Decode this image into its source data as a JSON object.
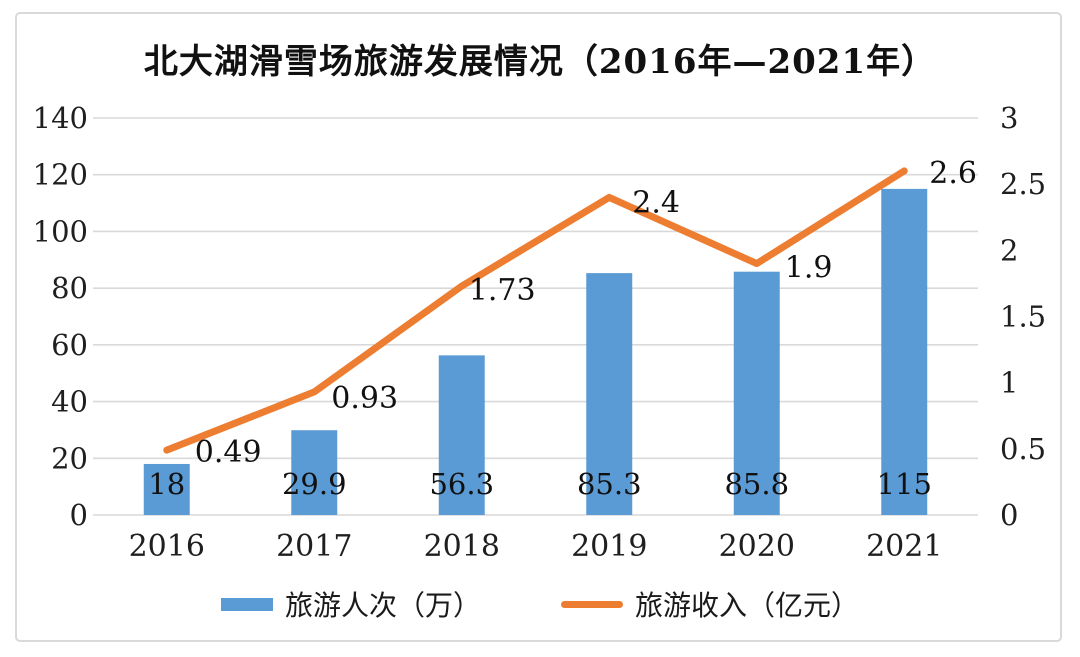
{
  "chart_data": {
    "type": "bar+line",
    "title": "北大湖滑雪场旅游发展情况（2016年—2021年）",
    "categories": [
      "2016",
      "2017",
      "2018",
      "2019",
      "2020",
      "2021"
    ],
    "series": [
      {
        "name": "旅游人次（万）",
        "type": "bar",
        "axis": "left",
        "values": [
          18,
          29.9,
          56.3,
          85.3,
          85.8,
          115
        ],
        "labels": [
          "18",
          "29.9",
          "56.3",
          "85.3",
          "85.8",
          "115"
        ],
        "color": "#5B9BD5"
      },
      {
        "name": "旅游收入（亿元）",
        "type": "line",
        "axis": "right",
        "values": [
          0.49,
          0.93,
          1.73,
          2.4,
          1.9,
          2.6
        ],
        "labels": [
          "0.49",
          "0.93",
          "1.73",
          "2.4",
          "1.9",
          "2.6"
        ],
        "color": "#ED7D31"
      }
    ],
    "left_axis": {
      "min": 0,
      "max": 140,
      "step": 20,
      "ticks": [
        "0",
        "20",
        "40",
        "60",
        "80",
        "100",
        "120",
        "140"
      ]
    },
    "right_axis": {
      "min": 0,
      "max": 3,
      "step": 0.5,
      "ticks": [
        "0",
        "0.5",
        "1",
        "1.5",
        "2",
        "2.5",
        "3"
      ]
    },
    "grid": true,
    "legend_position": "bottom",
    "colors": {
      "bar": "#5B9BD5",
      "line": "#ED7D31",
      "grid": "#d9d9d9",
      "text": "#1f1f1f",
      "border": "#d9d9d9",
      "background": "#ffffff"
    }
  }
}
